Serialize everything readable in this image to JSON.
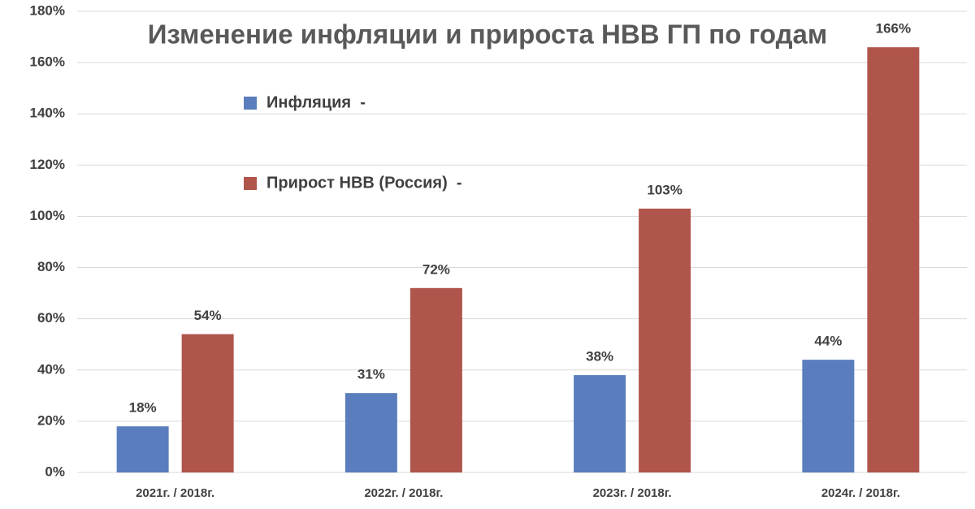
{
  "chart_data": {
    "type": "bar",
    "title": "Изменение инфляции и прироста НВВ ГП по годам",
    "categories": [
      "2021г. / 2018г.",
      "2022г. / 2018г.",
      "2023г. / 2018г.",
      "2024г. / 2018г."
    ],
    "series": [
      {
        "name": "Инфляция  -",
        "color": "#5a7ebd",
        "values": [
          18,
          31,
          38,
          44
        ],
        "value_labels": [
          "18%",
          "31%",
          "38%",
          "44%"
        ]
      },
      {
        "name": "Прирост НВВ (Россия)  -",
        "color": "#b0554c",
        "values": [
          54,
          72,
          103,
          166
        ],
        "value_labels": [
          "54%",
          "72%",
          "103%",
          "166%"
        ]
      }
    ],
    "ylim": [
      0,
      180
    ],
    "yticks": [
      {
        "value": 0,
        "label": "0%"
      },
      {
        "value": 20,
        "label": "20%"
      },
      {
        "value": 40,
        "label": "40%"
      },
      {
        "value": 60,
        "label": "60%"
      },
      {
        "value": 80,
        "label": "80%"
      },
      {
        "value": 100,
        "label": "100%"
      },
      {
        "value": 120,
        "label": "120%"
      },
      {
        "value": 140,
        "label": "140%"
      },
      {
        "value": 160,
        "label": "160%"
      },
      {
        "value": 180,
        "label": "180%"
      }
    ],
    "grid": true
  }
}
